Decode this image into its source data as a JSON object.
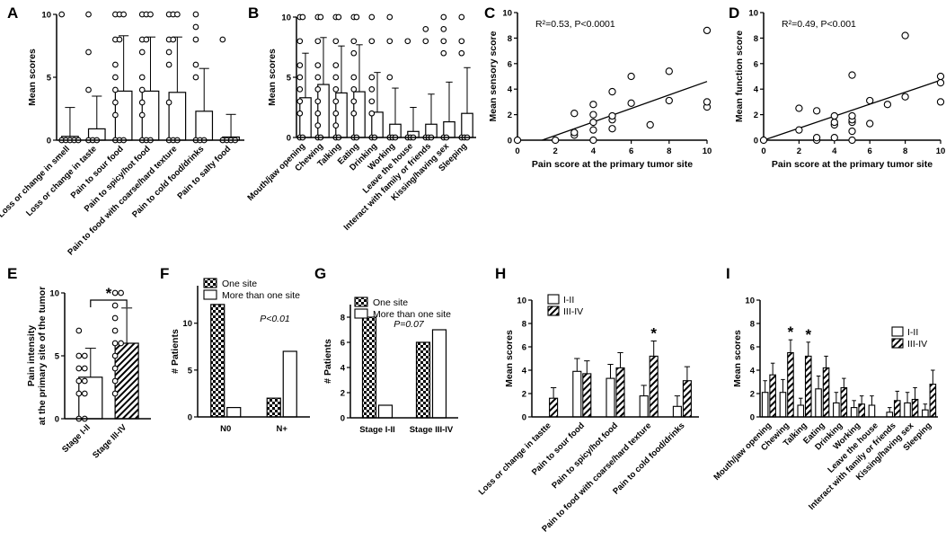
{
  "patterns": {
    "checker": "checker-fill",
    "hatch": "hatch-fill"
  },
  "colors": {
    "ink": "#000000",
    "paper": "#ffffff"
  },
  "chart_data": [
    {
      "panel": "A",
      "type": "bar",
      "ylabel": "Mean scores",
      "ylim": [
        0,
        10
      ],
      "yticks": [
        0,
        5,
        10
      ],
      "categories": [
        "Loss or change in smell",
        "Loss or change in taste",
        "Pain to sour food",
        "Pain to spicy/hot food",
        "Pain to food with coarse/hard texture",
        "Pain to cold food/drinks",
        "Pain to salty food"
      ],
      "values": [
        0.3,
        0.9,
        3.9,
        3.9,
        3.8,
        2.3,
        0.25
      ],
      "errors": [
        2.3,
        2.6,
        4.4,
        4.3,
        4.4,
        3.4,
        1.8
      ],
      "points": [
        [
          10,
          0,
          0,
          0,
          0,
          0
        ],
        [
          10,
          7,
          4,
          0,
          0,
          0
        ],
        [
          10,
          10,
          10,
          8,
          8,
          6,
          5,
          4,
          3,
          2,
          0,
          0,
          0
        ],
        [
          10,
          10,
          10,
          8,
          8,
          7,
          5,
          4,
          3,
          2,
          0,
          0,
          0
        ],
        [
          10,
          10,
          10,
          8,
          8,
          7,
          6,
          3,
          0,
          0,
          0
        ],
        [
          10,
          9,
          8,
          6,
          5,
          0,
          0,
          0
        ],
        [
          8,
          0,
          0,
          0,
          0
        ]
      ]
    },
    {
      "panel": "B",
      "type": "bar",
      "ylabel": "Mean scores",
      "ylim": [
        0,
        10
      ],
      "yticks": [
        0,
        5,
        10
      ],
      "categories": [
        "Mouth/jaw opening",
        "Chewing",
        "Talking",
        "Eating",
        "Drinking",
        "Working",
        "Leave the house",
        "Interact with family or friends",
        "Kissing/having sex",
        "Sleeping"
      ],
      "values": [
        3.3,
        4.4,
        3.7,
        3.8,
        2.1,
        1.1,
        0.5,
        1.1,
        1.3,
        2.0
      ],
      "errors": [
        3.7,
        3.9,
        3.9,
        3.9,
        3.3,
        3.0,
        2.0,
        2.5,
        3.3,
        3.8
      ],
      "points": [
        [
          10,
          10,
          8,
          6,
          5,
          4,
          3,
          2,
          0,
          0
        ],
        [
          10,
          10,
          8,
          6,
          5,
          4,
          3,
          2,
          1,
          0,
          0
        ],
        [
          10,
          10,
          8,
          6,
          5,
          4,
          3,
          2,
          1,
          0,
          0
        ],
        [
          10,
          10,
          8,
          7,
          5,
          4,
          3,
          2,
          0,
          0
        ],
        [
          10,
          8,
          5,
          4,
          3,
          2,
          0,
          0
        ],
        [
          10,
          8,
          5,
          0,
          0,
          0
        ],
        [
          8,
          0,
          0,
          0
        ],
        [
          9,
          8,
          0,
          0,
          0
        ],
        [
          10,
          9,
          8,
          7,
          0,
          0
        ],
        [
          10,
          8,
          7,
          0,
          0,
          0
        ]
      ]
    },
    {
      "panel": "C",
      "type": "scatter",
      "title_annotation": "R²=0.53, P<0.0001",
      "xlabel": "Pain score at the primary tumor site",
      "ylabel": "Mean sensory score",
      "xlim": [
        0,
        10
      ],
      "ylim": [
        0,
        10
      ],
      "xticks": [
        0,
        2,
        4,
        6,
        8,
        10
      ],
      "yticks": [
        0,
        2,
        4,
        6,
        8,
        10
      ],
      "x": [
        0,
        2,
        3,
        3,
        3,
        4,
        4,
        4,
        4,
        4,
        5,
        5,
        5,
        5,
        6,
        6,
        7,
        8,
        8,
        10,
        10,
        10
      ],
      "y": [
        0,
        0,
        0.4,
        0.6,
        2.1,
        0,
        0.8,
        1.4,
        2.0,
        2.8,
        0.9,
        1.6,
        1.9,
        3.8,
        2.9,
        5.0,
        1.2,
        3.1,
        5.4,
        2.6,
        3.0,
        8.6
      ],
      "fit": {
        "x": [
          1.3,
          10
        ],
        "y": [
          0,
          4.6
        ]
      }
    },
    {
      "panel": "D",
      "type": "scatter",
      "title_annotation": "R²=0.49, P<0.001",
      "xlabel": "Pain score at the primary tumor site",
      "ylabel": "Mean function score",
      "xlim": [
        0,
        10
      ],
      "ylim": [
        0,
        10
      ],
      "xticks": [
        0,
        2,
        4,
        6,
        8,
        10
      ],
      "yticks": [
        0,
        2,
        4,
        6,
        8,
        10
      ],
      "x": [
        0,
        2,
        2,
        3,
        3,
        3,
        4,
        4,
        4,
        4,
        5,
        5,
        5,
        5,
        5,
        5,
        6,
        6,
        7,
        8,
        8,
        10,
        10,
        10
      ],
      "y": [
        0,
        0.8,
        2.5,
        0,
        0.2,
        2.3,
        0.2,
        1.2,
        1.4,
        1.9,
        0,
        0.7,
        1.4,
        1.6,
        1.9,
        5.1,
        1.3,
        3.1,
        2.8,
        3.4,
        8.2,
        3.0,
        4.5,
        5.0
      ],
      "fit": {
        "x": [
          0,
          10
        ],
        "y": [
          0,
          4.7
        ]
      }
    },
    {
      "panel": "E",
      "type": "bar",
      "ylabel_lines": [
        "Pain intensity",
        "at the primary site of the tumor"
      ],
      "ylim": [
        0,
        10
      ],
      "yticks": [
        0,
        5,
        10
      ],
      "categories": [
        "Stage I-II",
        "Stage III-IV"
      ],
      "values": [
        3.3,
        6.0
      ],
      "errors": [
        2.3,
        2.8
      ],
      "fills": [
        "plain",
        "hatch"
      ],
      "points": [
        [
          7,
          5,
          5,
          4,
          4,
          3,
          3,
          2,
          2,
          0,
          0
        ],
        [
          10,
          10,
          9,
          8,
          7,
          6,
          6,
          5,
          4,
          3,
          2
        ]
      ],
      "annotation": "*"
    },
    {
      "panel": "F",
      "type": "bar",
      "ylabel": "# Patients",
      "ylim": [
        0,
        14
      ],
      "yticks": [
        0,
        5,
        10
      ],
      "categories": [
        "N0",
        "N+"
      ],
      "series": [
        {
          "name": "One site",
          "values": [
            12,
            2
          ],
          "fill": "checker"
        },
        {
          "name": "More than one site",
          "values": [
            1,
            7
          ],
          "fill": "plain"
        }
      ],
      "annotation": "P<0.01"
    },
    {
      "panel": "G",
      "type": "bar",
      "ylabel": "# Patients",
      "ylim": [
        0,
        9
      ],
      "yticks": [
        0,
        2,
        4,
        6,
        8
      ],
      "categories": [
        "Stage I-II",
        "Stage III-IV"
      ],
      "series": [
        {
          "name": "One site",
          "values": [
            8,
            6
          ],
          "fill": "checker"
        },
        {
          "name": "More than one site",
          "values": [
            1,
            7
          ],
          "fill": "plain"
        }
      ],
      "annotation": "P=0.07"
    },
    {
      "panel": "H",
      "type": "bar",
      "ylabel": "Mean scores",
      "ylim": [
        0,
        10
      ],
      "yticks": [
        0,
        2,
        4,
        6,
        8,
        10
      ],
      "categories": [
        "Loss or change in tastte",
        "Pain to sour food",
        "Pain to spicy/hot food",
        "Pain to food with coarse/hard texture",
        "Pain to cold food/drinks"
      ],
      "series": [
        {
          "name": "I-II",
          "values": [
            0,
            3.9,
            3.3,
            1.8,
            0.9
          ],
          "errors": [
            0,
            1.1,
            1.2,
            0.9,
            0.9
          ],
          "fill": "plain"
        },
        {
          "name": "III-IV",
          "values": [
            1.6,
            3.7,
            4.2,
            5.2,
            3.1
          ],
          "errors": [
            0.9,
            1.1,
            1.3,
            1.3,
            1.2
          ],
          "fill": "hatch"
        }
      ],
      "star_on": [
        3
      ]
    },
    {
      "panel": "I",
      "type": "bar",
      "ylabel": "Mean scores",
      "ylim": [
        0,
        10
      ],
      "yticks": [
        0,
        2,
        4,
        6,
        8,
        10
      ],
      "categories": [
        "Mouth/jaw opening",
        "Chewing",
        "Talking",
        "Eating",
        "Drinking",
        "Working",
        "Leave the house",
        "Interact with family or friends",
        "Kissing/having sex",
        "Sleeping"
      ],
      "series": [
        {
          "name": "I-II",
          "values": [
            2.1,
            2.1,
            1.0,
            2.4,
            1.2,
            0.8,
            1.0,
            0.4,
            1.2,
            0.6
          ],
          "errors": [
            1.0,
            1.1,
            0.6,
            1.1,
            0.9,
            0.6,
            0.8,
            0.4,
            0.9,
            0.5
          ],
          "fill": "plain"
        },
        {
          "name": "III-IV",
          "values": [
            3.6,
            5.5,
            5.2,
            4.2,
            2.5,
            1.1,
            0,
            1.4,
            1.5,
            2.8
          ],
          "errors": [
            1.0,
            1.1,
            1.2,
            1.0,
            0.8,
            0.7,
            0,
            0.8,
            1.0,
            1.2
          ],
          "fill": "hatch"
        }
      ],
      "star_on": [
        1,
        2
      ]
    }
  ]
}
